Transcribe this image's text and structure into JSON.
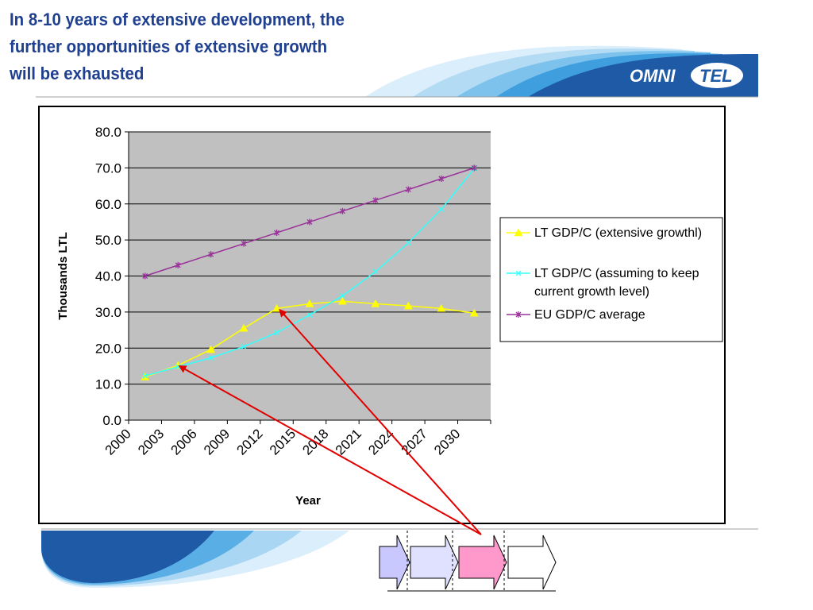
{
  "slide": {
    "title_lines": [
      "In  8-10 years of extensive development, the",
      "further opportunities of extensive growth",
      "will be exhausted"
    ],
    "logo": {
      "left": "OMNI",
      "right": "TEL",
      "color": "#1f5aa6"
    }
  },
  "chart_data": {
    "type": "line",
    "title": "",
    "xlabel": "Year",
    "ylabel": "Thousands LTL",
    "x_tick_labels": [
      "2000",
      "2003",
      "2006",
      "2009",
      "2012",
      "2015",
      "2018",
      "2021",
      "2024",
      "2027",
      "2030"
    ],
    "y_tick_labels": [
      "0.0",
      "10.0",
      "20.0",
      "30.0",
      "40.0",
      "50.0",
      "60.0",
      "70.0",
      "80.0"
    ],
    "ylim": [
      0,
      80
    ],
    "grid": true,
    "plot_background": "#c0c0c0",
    "legend_position": "right",
    "x": [
      2001,
      2004,
      2007,
      2010,
      2013,
      2016,
      2019,
      2022,
      2025,
      2028,
      2031
    ],
    "series": [
      {
        "name": "LT GDP/C (extensive growthl)",
        "color": "#ffff00",
        "marker": "triangle",
        "values": [
          12.0,
          15.2,
          19.6,
          25.5,
          31.0,
          32.3,
          33.0,
          32.3,
          31.7,
          31.0,
          29.7
        ]
      },
      {
        "name": "LT GDP/C (assuming to keep current growth level)",
        "color": "#33ffff",
        "marker": "x",
        "values": [
          12.3,
          14.8,
          17.3,
          20.4,
          24.3,
          29.2,
          34.5,
          41.2,
          49.2,
          58.5,
          69.8
        ]
      },
      {
        "name": "EU GDP/C average",
        "color": "#993399",
        "marker": "star",
        "values": [
          40.0,
          43.0,
          46.0,
          49.0,
          52.0,
          55.0,
          58.0,
          61.0,
          64.0,
          67.0,
          70.0
        ]
      }
    ],
    "annotation_arrow_color": "#e00000"
  },
  "process_steps": [
    {
      "fill": "#c8c8ff"
    },
    {
      "fill": "#e0e0ff"
    },
    {
      "fill": "#ff99cc"
    },
    {
      "fill": "#ffffff"
    }
  ]
}
